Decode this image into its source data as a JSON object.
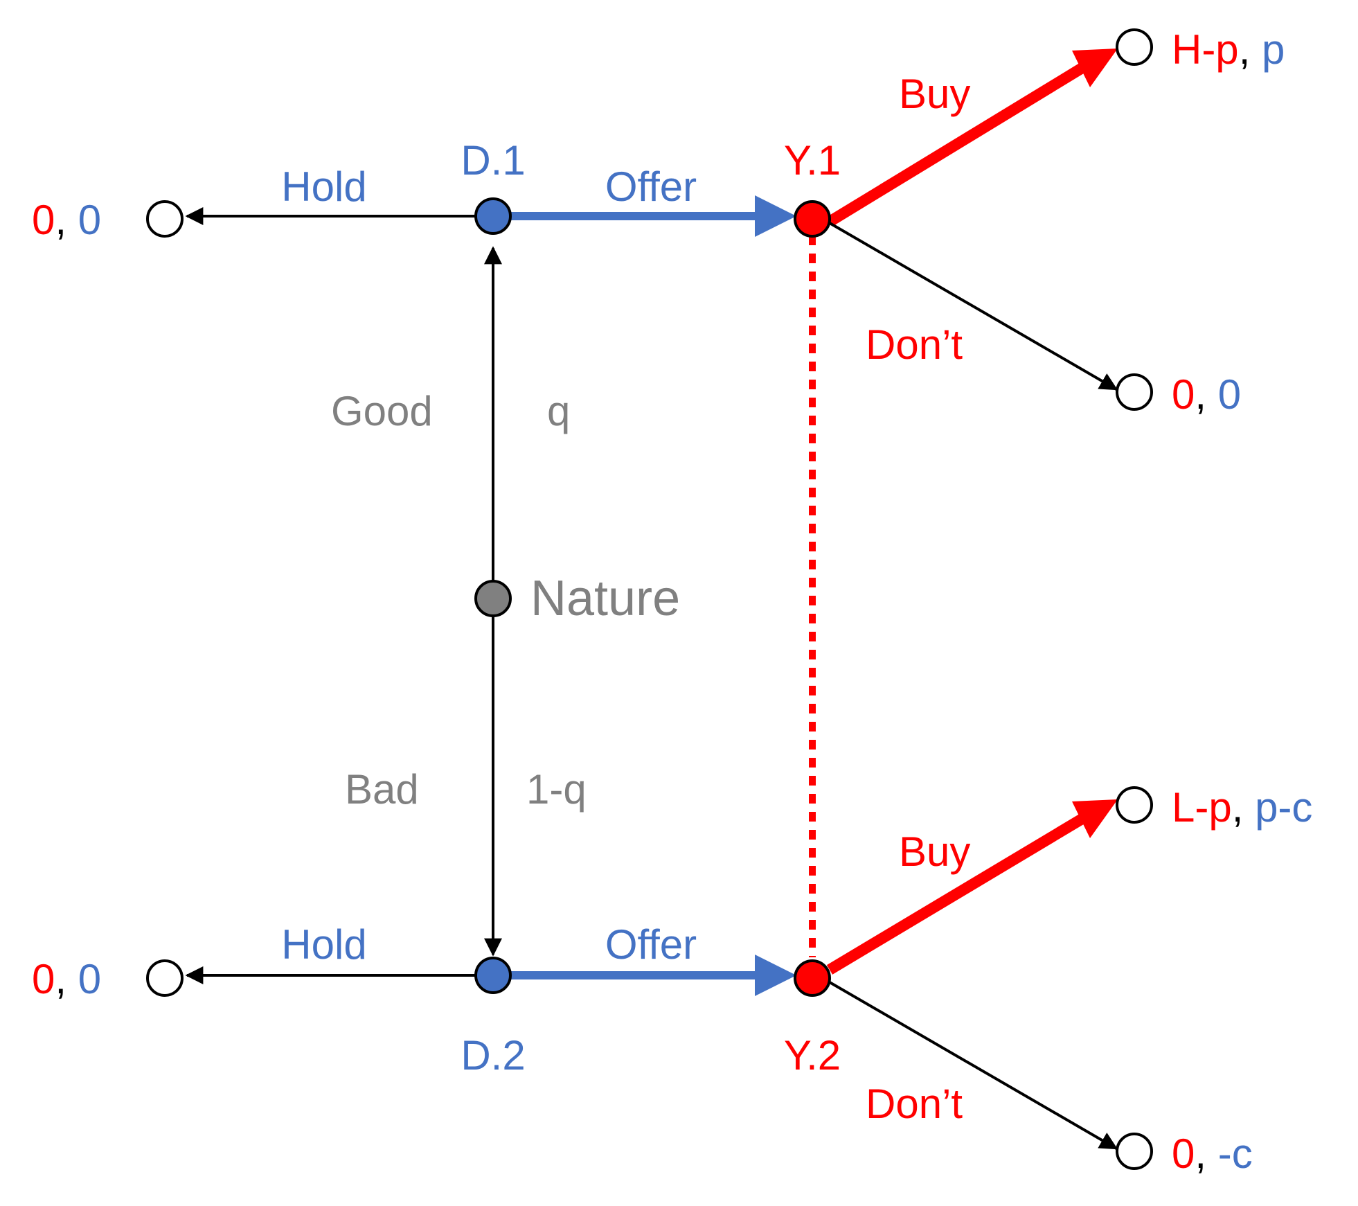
{
  "colors": {
    "blue": "#4472C4",
    "red": "#FF0000",
    "gray": "#808080",
    "black": "#000000"
  },
  "nodes": {
    "nature": "Nature",
    "d1": "D.1",
    "d2": "D.2",
    "y1": "Y.1",
    "y2": "Y.2"
  },
  "nature_branches": {
    "good": "Good",
    "good_prob": "q",
    "bad": "Bad",
    "bad_prob": "1-q"
  },
  "actions": {
    "hold_top": "Hold",
    "offer_top": "Offer",
    "hold_bottom": "Hold",
    "offer_bottom": "Offer",
    "buy_top": "Buy",
    "dont_top": "Don’t",
    "buy_bottom": "Buy",
    "dont_bottom": "Don’t"
  },
  "payoffs": {
    "hold_top": {
      "red": "0",
      "sep": ", ",
      "blue": "0"
    },
    "hold_bottom": {
      "red": "0",
      "sep": ", ",
      "blue": "0"
    },
    "buy_top": {
      "red": "H-p",
      "sep": ", ",
      "blue": "p"
    },
    "dont_top": {
      "red": "0",
      "sep": ", ",
      "blue": "0"
    },
    "buy_bottom": {
      "red": "L-p",
      "sep": ", ",
      "blue": "p-c"
    },
    "dont_bottom": {
      "red": "0",
      "sep": ", ",
      "blue": "-c"
    }
  }
}
